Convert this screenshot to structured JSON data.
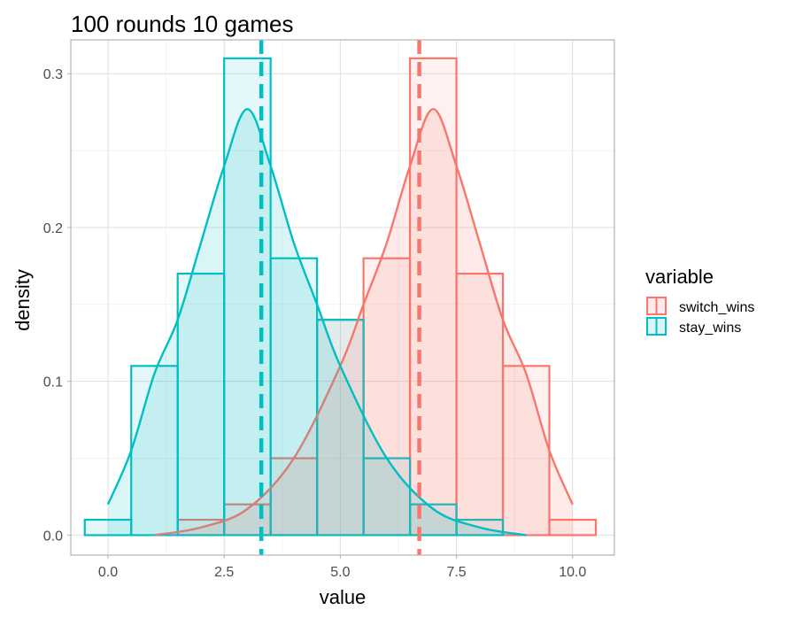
{
  "chart_data": {
    "type": "histogram",
    "title": "100 rounds 10 games",
    "xlabel": "value",
    "ylabel": "density",
    "xlim": [
      -0.8,
      10.9
    ],
    "ylim": [
      -0.013,
      0.322
    ],
    "x_ticks": [
      0,
      2.5,
      5,
      7.5,
      10
    ],
    "x_tick_labels": [
      "0.0",
      "2.5",
      "5.0",
      "7.5",
      "10.0"
    ],
    "y_ticks": [
      0,
      0.1,
      0.2,
      0.3
    ],
    "y_tick_labels": [
      "0.0",
      "0.1",
      "0.2",
      "0.3"
    ],
    "grid": true,
    "legend": {
      "title": "variable",
      "position": "right",
      "items": [
        "switch_wins",
        "stay_wins"
      ]
    },
    "bin_width": 1,
    "series": [
      {
        "name": "switch_wins",
        "color": "#F8766D",
        "bins": [
          {
            "x": 0,
            "density": 0.0
          },
          {
            "x": 1,
            "density": 0.0
          },
          {
            "x": 2,
            "density": 0.01
          },
          {
            "x": 3,
            "density": 0.02
          },
          {
            "x": 4,
            "density": 0.05
          },
          {
            "x": 5,
            "density": 0.14
          },
          {
            "x": 6,
            "density": 0.18
          },
          {
            "x": 7,
            "density": 0.31
          },
          {
            "x": 8,
            "density": 0.17
          },
          {
            "x": 9,
            "density": 0.11
          },
          {
            "x": 10,
            "density": 0.01
          }
        ],
        "mean": 6.7,
        "density_curve": [
          {
            "x": 1.0,
            "y": 0.0
          },
          {
            "x": 2.0,
            "y": 0.005
          },
          {
            "x": 3.0,
            "y": 0.017
          },
          {
            "x": 4.0,
            "y": 0.05
          },
          {
            "x": 5.0,
            "y": 0.11
          },
          {
            "x": 5.5,
            "y": 0.15
          },
          {
            "x": 6.0,
            "y": 0.19
          },
          {
            "x": 6.5,
            "y": 0.24
          },
          {
            "x": 7.0,
            "y": 0.277
          },
          {
            "x": 7.5,
            "y": 0.24
          },
          {
            "x": 8.0,
            "y": 0.19
          },
          {
            "x": 8.5,
            "y": 0.14
          },
          {
            "x": 9.0,
            "y": 0.105
          },
          {
            "x": 9.5,
            "y": 0.055
          },
          {
            "x": 10.0,
            "y": 0.02
          }
        ]
      },
      {
        "name": "stay_wins",
        "color": "#00BFC4",
        "bins": [
          {
            "x": 0,
            "density": 0.01
          },
          {
            "x": 1,
            "density": 0.11
          },
          {
            "x": 2,
            "density": 0.17
          },
          {
            "x": 3,
            "density": 0.31
          },
          {
            "x": 4,
            "density": 0.18
          },
          {
            "x": 5,
            "density": 0.14
          },
          {
            "x": 6,
            "density": 0.05
          },
          {
            "x": 7,
            "density": 0.02
          },
          {
            "x": 8,
            "density": 0.01
          },
          {
            "x": 9,
            "density": 0.0
          },
          {
            "x": 10,
            "density": 0.0
          }
        ],
        "mean": 3.3,
        "density_curve": [
          {
            "x": 0.0,
            "y": 0.02
          },
          {
            "x": 0.5,
            "y": 0.055
          },
          {
            "x": 1.0,
            "y": 0.105
          },
          {
            "x": 1.5,
            "y": 0.14
          },
          {
            "x": 2.0,
            "y": 0.19
          },
          {
            "x": 2.5,
            "y": 0.24
          },
          {
            "x": 3.0,
            "y": 0.277
          },
          {
            "x": 3.5,
            "y": 0.24
          },
          {
            "x": 4.0,
            "y": 0.19
          },
          {
            "x": 4.5,
            "y": 0.15
          },
          {
            "x": 5.0,
            "y": 0.11
          },
          {
            "x": 6.0,
            "y": 0.05
          },
          {
            "x": 7.0,
            "y": 0.017
          },
          {
            "x": 8.0,
            "y": 0.005
          },
          {
            "x": 9.0,
            "y": 0.0
          }
        ]
      }
    ]
  }
}
